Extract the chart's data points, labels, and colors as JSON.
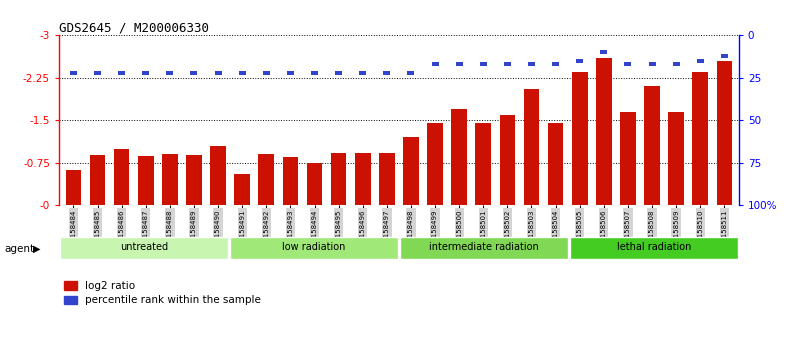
{
  "title": "GDS2645 / M200006330",
  "samples": [
    "GSM158484",
    "GSM158485",
    "GSM158486",
    "GSM158487",
    "GSM158488",
    "GSM158489",
    "GSM158490",
    "GSM158491",
    "GSM158492",
    "GSM158493",
    "GSM158494",
    "GSM158495",
    "GSM158496",
    "GSM158497",
    "GSM158498",
    "GSM158499",
    "GSM158500",
    "GSM158501",
    "GSM158502",
    "GSM158503",
    "GSM158504",
    "GSM158505",
    "GSM158506",
    "GSM158507",
    "GSM158508",
    "GSM158509",
    "GSM158510",
    "GSM158511"
  ],
  "log2_ratio": [
    -0.62,
    -0.88,
    -1.0,
    -0.87,
    -0.9,
    -0.88,
    -1.05,
    -0.55,
    -0.9,
    -0.85,
    -0.75,
    -0.92,
    -0.92,
    -0.92,
    -1.2,
    -1.45,
    -1.7,
    -1.45,
    -1.6,
    -2.05,
    -1.45,
    -2.35,
    -2.6,
    -1.65,
    -2.1,
    -1.65,
    -2.35,
    -2.55
  ],
  "percentile_rank": [
    22,
    22,
    22,
    22,
    22,
    22,
    22,
    22,
    22,
    22,
    22,
    22,
    22,
    22,
    22,
    17,
    17,
    17,
    17,
    17,
    17,
    15,
    10,
    17,
    17,
    17,
    15,
    12
  ],
  "groups": [
    {
      "label": "untreated",
      "start": 0,
      "end": 7,
      "color": "#c8f5b0"
    },
    {
      "label": "low radiation",
      "start": 7,
      "end": 14,
      "color": "#a0e878"
    },
    {
      "label": "intermediate radiation",
      "start": 14,
      "end": 21,
      "color": "#80d855"
    },
    {
      "label": "lethal radiation",
      "start": 21,
      "end": 28,
      "color": "#44cc22"
    }
  ],
  "bar_color": "#cc1100",
  "blue_color": "#3344cc",
  "ylim_left": [
    -3,
    0
  ],
  "ylim_right": [
    0,
    100
  ],
  "yticks_left": [
    0,
    -0.75,
    -1.5,
    -2.25,
    -3
  ],
  "yticks_right": [
    0,
    25,
    50,
    75,
    100
  ],
  "background_color": "#ffffff",
  "agent_label": "agent",
  "legend_red": "log2 ratio",
  "legend_blue": "percentile rank within the sample"
}
